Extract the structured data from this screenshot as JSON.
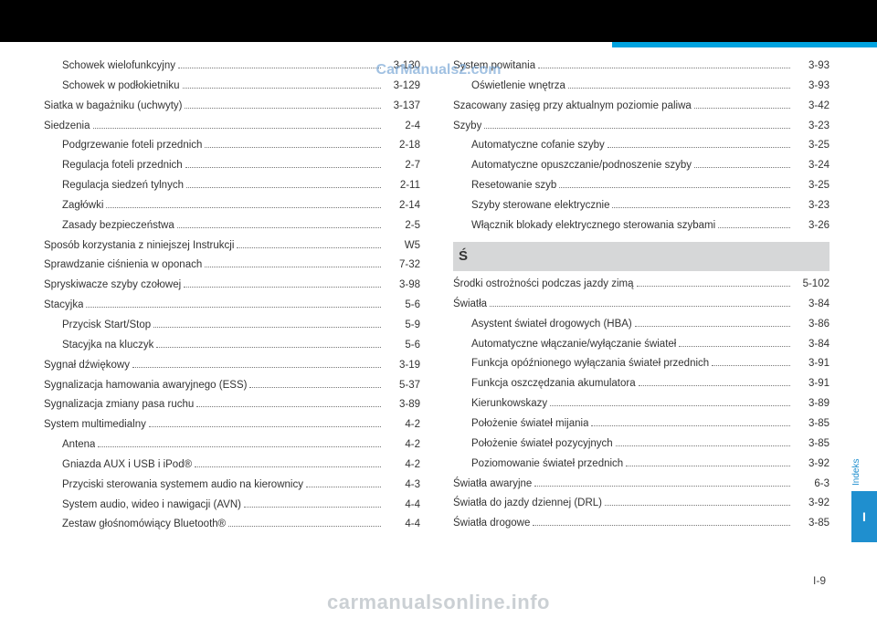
{
  "watermark_top": "CarManuals2.com",
  "watermark_bottom": "carmanualsonline.info",
  "page_number": "I-9",
  "side_tab": {
    "label": "Indeks",
    "letter": "I"
  },
  "left_column": [
    {
      "label": "Schowek wielofunkcyjny",
      "page": "3-130",
      "sub": true
    },
    {
      "label": "Schowek w podłokietniku",
      "page": "3-129",
      "sub": true
    },
    {
      "label": "Siatka w bagażniku (uchwyty)",
      "page": "3-137",
      "sub": false
    },
    {
      "label": "Siedzenia",
      "page": "2-4",
      "sub": false
    },
    {
      "label": "Podgrzewanie foteli przednich",
      "page": "2-18",
      "sub": true
    },
    {
      "label": "Regulacja foteli przednich",
      "page": "2-7",
      "sub": true
    },
    {
      "label": "Regulacja siedzeń tylnych",
      "page": "2-11",
      "sub": true
    },
    {
      "label": "Zagłówki",
      "page": "2-14",
      "sub": true
    },
    {
      "label": "Zasady bezpieczeństwa",
      "page": "2-5",
      "sub": true
    },
    {
      "label": "Sposób korzystania z niniejszej Instrukcji",
      "page": "W5",
      "sub": false
    },
    {
      "label": "Sprawdzanie ciśnienia w oponach",
      "page": "7-32",
      "sub": false
    },
    {
      "label": "Spryskiwacze szyby czołowej",
      "page": "3-98",
      "sub": false
    },
    {
      "label": "Stacyjka",
      "page": "5-6",
      "sub": false
    },
    {
      "label": "Przycisk Start/Stop",
      "page": "5-9",
      "sub": true
    },
    {
      "label": "Stacyjka na kluczyk",
      "page": "5-6",
      "sub": true
    },
    {
      "label": "Sygnał dźwiękowy",
      "page": "3-19",
      "sub": false
    },
    {
      "label": "Sygnalizacja hamowania awaryjnego (ESS)",
      "page": "5-37",
      "sub": false
    },
    {
      "label": "Sygnalizacja zmiany pasa ruchu",
      "page": "3-89",
      "sub": false
    },
    {
      "label": "System multimedialny",
      "page": "4-2",
      "sub": false
    },
    {
      "label": "Antena",
      "page": "4-2",
      "sub": true
    },
    {
      "label": "Gniazda AUX i USB i iPod®",
      "page": "4-2",
      "sub": true
    },
    {
      "label": "Przyciski sterowania systemem audio na kierownicy",
      "page": "4-3",
      "sub": true
    },
    {
      "label": "System audio, wideo i nawigacji (AVN)",
      "page": "4-4",
      "sub": true
    },
    {
      "label": "Zestaw głośnomówiący Bluetooth®",
      "page": "4-4",
      "sub": true
    }
  ],
  "right_column": {
    "before_section": [
      {
        "label": "System powitania",
        "page": "3-93",
        "sub": false
      },
      {
        "label": "Oświetlenie wnętrza",
        "page": "3-93",
        "sub": true
      },
      {
        "label": "Szacowany zasięg przy aktualnym poziomie paliwa",
        "page": "3-42",
        "sub": false
      },
      {
        "label": "Szyby",
        "page": "3-23",
        "sub": false
      },
      {
        "label": "Automatyczne cofanie szyby",
        "page": "3-25",
        "sub": true
      },
      {
        "label": "Automatyczne opuszczanie/podnoszenie szyby",
        "page": "3-24",
        "sub": true
      },
      {
        "label": "Resetowanie szyb",
        "page": "3-25",
        "sub": true
      },
      {
        "label": "Szyby sterowane elektrycznie",
        "page": "3-23",
        "sub": true
      },
      {
        "label": "Włącznik blokady elektrycznego sterowania szybami",
        "page": "3-26",
        "sub": true
      }
    ],
    "section_header": "Ś",
    "after_section": [
      {
        "label": "Środki ostrożności podczas jazdy zimą",
        "page": "5-102",
        "sub": false
      },
      {
        "label": "Światła",
        "page": "3-84",
        "sub": false
      },
      {
        "label": "Asystent świateł drogowych (HBA)",
        "page": "3-86",
        "sub": true
      },
      {
        "label": "Automatyczne włączanie/wyłączanie świateł",
        "page": "3-84",
        "sub": true
      },
      {
        "label": "Funkcja opóźnionego wyłączania świateł przednich",
        "page": "3-91",
        "sub": true
      },
      {
        "label": "Funkcja oszczędzania akumulatora",
        "page": "3-91",
        "sub": true
      },
      {
        "label": "Kierunkowskazy",
        "page": "3-89",
        "sub": true
      },
      {
        "label": "Położenie świateł mijania",
        "page": "3-85",
        "sub": true
      },
      {
        "label": "Położenie świateł pozycyjnych",
        "page": "3-85",
        "sub": true
      },
      {
        "label": "Poziomowanie świateł przednich",
        "page": "3-92",
        "sub": true
      },
      {
        "label": "Światła awaryjne",
        "page": "6-3",
        "sub": false
      },
      {
        "label": "Światła do jazdy dziennej (DRL)",
        "page": "3-92",
        "sub": false
      },
      {
        "label": "Światła drogowe",
        "page": "3-85",
        "sub": false
      }
    ]
  },
  "colors": {
    "top_bar": "#000000",
    "accent": "#00a3e0",
    "tab_bg": "#1f8fcf",
    "tab_text": "#ffffff",
    "section_bg": "#d6d7d8",
    "text": "#333333",
    "watermark_top": "#7aa8d6",
    "watermark_bottom": "#bfc5ca"
  }
}
